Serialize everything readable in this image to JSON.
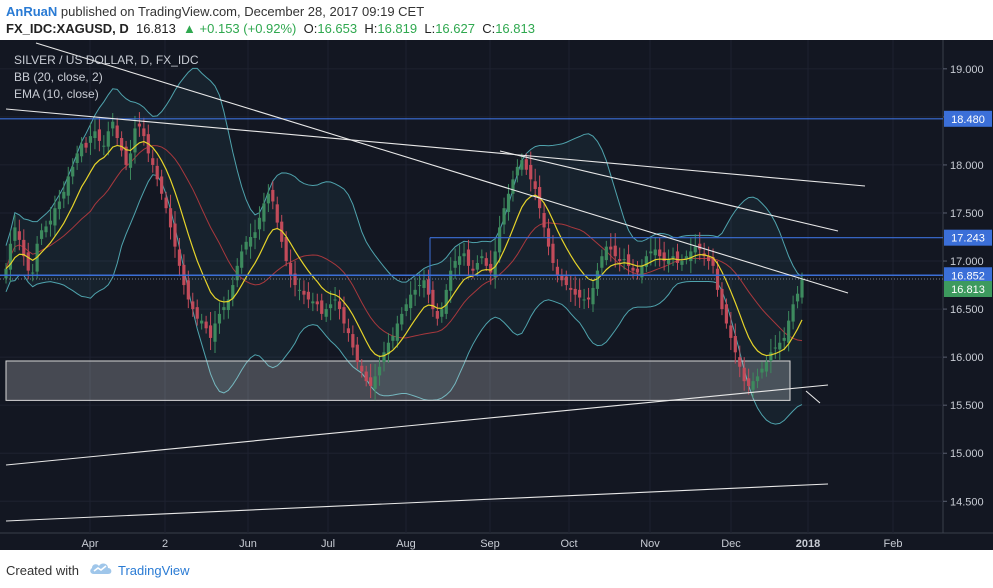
{
  "header": {
    "author": "AnRuaN",
    "published_text": "published on TradingView.com, December 28, 2017 09:19 CET",
    "symbol": "FX_IDC:XAGUSD, D",
    "last": "16.813",
    "up_arrow": "▲",
    "change": "+0.153 (+0.92%)",
    "o_label": "O:",
    "o_value": "16.653",
    "h_label": "H:",
    "h_value": "16.819",
    "l_label": "L:",
    "l_value": "16.627",
    "c_label": "C:",
    "c_value": "16.813"
  },
  "legend": {
    "title": "SILVER / US DOLLAR, D, FX_IDC",
    "bb": "BB (20, close, 2)",
    "ema": "EMA (10, close)"
  },
  "footer": {
    "created_with": "Created with",
    "brand": "TradingView",
    "logo_icon": "tradingview-cloud-icon"
  },
  "colors": {
    "background": "#131722",
    "bull_candle": "#3d8a5e",
    "bear_candle": "#c24b5a",
    "ema": "#e6d42a",
    "bb_band": "#4fa3ad",
    "bb_basis": "#a8383d",
    "horizontal_level": "#3b6fd8",
    "trendline": "#e8e8e8",
    "last_price_tag": "#3d9a5e"
  },
  "chart_data": {
    "type": "candlestick",
    "title": "SILVER / US DOLLAR, D, FX_IDC",
    "x_ticks": [
      "Apr",
      "2",
      "Jun",
      "Jul",
      "Aug",
      "Sep",
      "Oct",
      "Nov",
      "Dec",
      "2018",
      "Feb"
    ],
    "y_ticks": [
      "19.000",
      "18.500",
      "18.000",
      "17.500",
      "17.000",
      "16.500",
      "16.000",
      "15.500",
      "15.000",
      "14.500"
    ],
    "ylim": [
      14.17,
      19.3
    ],
    "price_levels": [
      {
        "label": "18.480",
        "value": 18.48
      },
      {
        "label": "17.243",
        "value": 17.243
      },
      {
        "label": "16.852",
        "value": 16.852
      },
      {
        "label": "16.813",
        "value": 16.813
      }
    ],
    "last_price": 16.813,
    "support_zone": {
      "from": 15.55,
      "to": 15.96
    },
    "series_close": [
      16.92,
      17.18,
      17.35,
      17.22,
      17.05,
      16.9,
      16.88,
      17.18,
      17.32,
      17.36,
      17.42,
      17.55,
      17.62,
      17.72,
      17.88,
      17.98,
      18.12,
      18.22,
      18.18,
      18.3,
      18.35,
      18.25,
      18.2,
      18.35,
      18.45,
      18.28,
      18.15,
      18.0,
      18.12,
      18.38,
      18.4,
      18.3,
      18.12,
      18.0,
      17.85,
      17.7,
      17.55,
      17.35,
      17.15,
      16.95,
      16.75,
      16.6,
      16.5,
      16.4,
      16.38,
      16.3,
      16.2,
      16.35,
      16.45,
      16.52,
      16.6,
      16.75,
      16.95,
      17.1,
      17.2,
      17.25,
      17.3,
      17.45,
      17.6,
      17.7,
      17.62,
      17.4,
      17.2,
      17.0,
      16.85,
      16.75,
      16.7,
      16.65,
      16.6,
      16.58,
      16.55,
      16.45,
      16.5,
      16.55,
      16.6,
      16.5,
      16.35,
      16.25,
      16.1,
      15.95,
      15.85,
      15.75,
      15.7,
      15.8,
      15.9,
      16.05,
      16.15,
      16.22,
      16.35,
      16.45,
      16.55,
      16.65,
      16.7,
      16.75,
      16.8,
      16.65,
      16.5,
      16.4,
      16.5,
      16.7,
      16.9,
      17.0,
      17.05,
      17.08,
      16.95,
      16.9,
      16.98,
      17.05,
      16.95,
      16.88,
      17.1,
      17.35,
      17.55,
      17.7,
      17.85,
      17.98,
      18.05,
      17.95,
      17.85,
      17.75,
      17.55,
      17.35,
      17.15,
      16.98,
      16.85,
      16.8,
      16.75,
      16.7,
      16.65,
      16.62,
      16.6,
      16.6,
      16.72,
      16.9,
      17.05,
      17.15,
      17.12,
      17.05,
      17.0,
      17.02,
      16.95,
      16.9,
      16.88,
      16.95,
      17.05,
      17.1,
      17.12,
      17.05,
      17.0,
      17.02,
      17.05,
      16.98,
      17.0,
      17.05,
      17.1,
      17.15,
      17.12,
      17.05,
      17.0,
      16.95,
      16.7,
      16.5,
      16.35,
      16.2,
      16.05,
      15.9,
      15.75,
      15.7,
      15.75,
      15.8,
      15.88,
      15.95,
      16.05,
      16.1,
      16.15,
      16.2,
      16.38,
      16.55,
      16.66,
      16.81
    ]
  }
}
